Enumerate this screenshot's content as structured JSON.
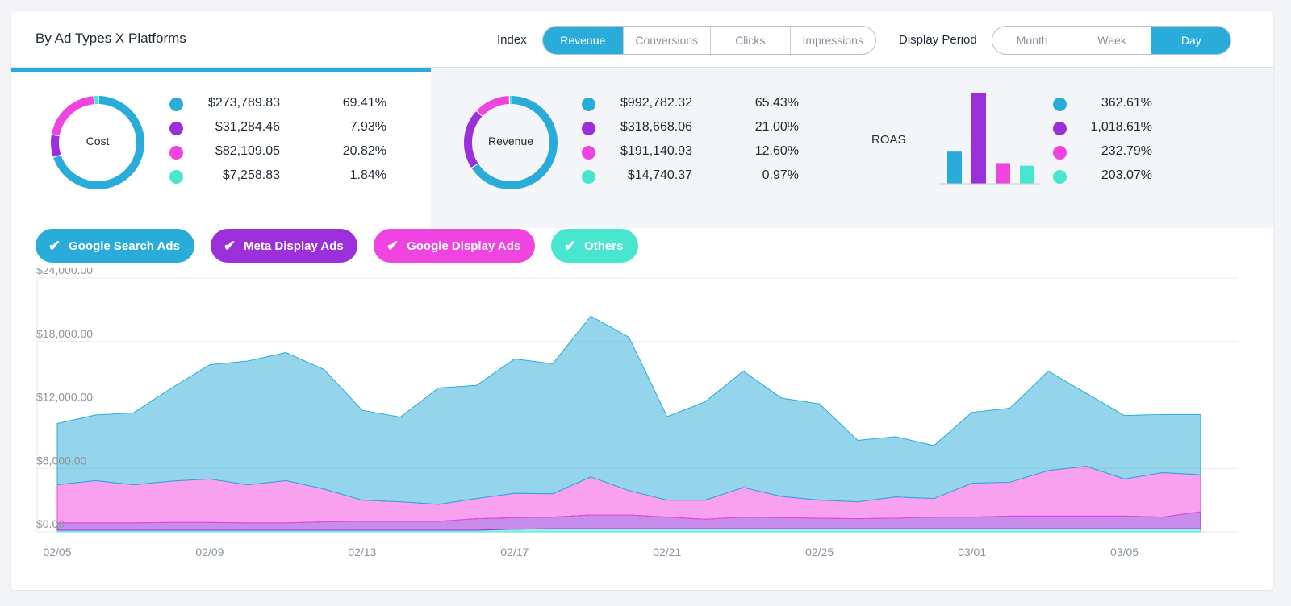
{
  "header": {
    "title": "By Ad Types X Platforms",
    "index_label": "Index",
    "index_options": [
      "Revenue",
      "Conversions",
      "Clicks",
      "Impressions"
    ],
    "index_active": "Revenue",
    "period_label": "Display Period",
    "period_options": [
      "Month",
      "Week",
      "Day"
    ],
    "period_active": "Day"
  },
  "colors": {
    "blue": "#29acd9",
    "purple": "#9b2fd9",
    "pink": "#f044e0",
    "teal": "#49e6cf"
  },
  "cost": {
    "label": "Cost",
    "rows": [
      {
        "value": "$273,789.83",
        "pct": "69.41%",
        "color": "#29acd9"
      },
      {
        "value": "$31,284.46",
        "pct": "7.93%",
        "color": "#9b2fd9"
      },
      {
        "value": "$82,109.05",
        "pct": "20.82%",
        "color": "#f044e0"
      },
      {
        "value": "$7,258.83",
        "pct": "1.84%",
        "color": "#49e6cf"
      }
    ]
  },
  "revenue": {
    "label": "Revenue",
    "rows": [
      {
        "value": "$992,782.32",
        "pct": "65.43%",
        "color": "#29acd9"
      },
      {
        "value": "$318,668.06",
        "pct": "21.00%",
        "color": "#9b2fd9"
      },
      {
        "value": "$191,140.93",
        "pct": "12.60%",
        "color": "#f044e0"
      },
      {
        "value": "$14,740.37",
        "pct": "0.97%",
        "color": "#49e6cf"
      }
    ]
  },
  "roas": {
    "label": "ROAS",
    "rows": [
      {
        "value": "362.61%",
        "color": "#29acd9"
      },
      {
        "value": "1,018.61%",
        "color": "#9b2fd9"
      },
      {
        "value": "232.79%",
        "color": "#f044e0"
      },
      {
        "value": "203.07%",
        "color": "#49e6cf"
      }
    ]
  },
  "filters": [
    {
      "label": "Google Search Ads",
      "color": "#29acd9"
    },
    {
      "label": "Meta Display Ads",
      "color": "#9b2fd9"
    },
    {
      "label": "Google Display Ads",
      "color": "#f044e0"
    },
    {
      "label": "Others",
      "color": "#49e6cf"
    }
  ],
  "chart_data": {
    "type": "area",
    "title": "",
    "y_ticks": [
      "$24,000.00",
      "$18,000.00",
      "$12,000.00",
      "$6,000.00",
      "$0.00"
    ],
    "ylim": [
      0,
      24000
    ],
    "x_ticks": [
      "02/05",
      "02/09",
      "02/13",
      "02/17",
      "02/21",
      "02/25",
      "03/01",
      "03/05"
    ],
    "stacked": true,
    "series": [
      {
        "name": "Others",
        "color": "#49e6cf",
        "values": [
          150,
          150,
          150,
          150,
          150,
          150,
          150,
          150,
          150,
          150,
          150,
          150,
          250,
          300,
          300,
          300,
          300,
          300,
          300,
          300,
          300,
          300,
          300,
          300,
          300,
          300,
          300,
          300,
          300,
          300,
          300
        ]
      },
      {
        "name": "Meta Display Ads",
        "color": "#9b2fd9",
        "values": [
          700,
          700,
          700,
          750,
          750,
          700,
          700,
          800,
          850,
          850,
          850,
          1100,
          1100,
          1100,
          1300,
          1300,
          1100,
          900,
          1100,
          1050,
          1000,
          950,
          1000,
          1100,
          1100,
          1200,
          1200,
          1200,
          1200,
          1100,
          1600
        ]
      },
      {
        "name": "Google Display Ads",
        "color": "#f044e0",
        "values": [
          3600,
          4000,
          3600,
          3900,
          4100,
          3600,
          4000,
          3100,
          2000,
          1850,
          1600,
          1900,
          2300,
          2200,
          3600,
          2300,
          1600,
          1800,
          2800,
          2000,
          1700,
          1600,
          2000,
          1750,
          3200,
          3200,
          4300,
          4700,
          3500,
          4200,
          3500
        ]
      },
      {
        "name": "Google Search Ads",
        "color": "#29acd9",
        "values": [
          5800,
          6200,
          6800,
          8800,
          10800,
          11700,
          12100,
          11300,
          8500,
          8000,
          11000,
          10700,
          12700,
          12300,
          15200,
          14500,
          7900,
          9300,
          11000,
          9300,
          9100,
          5800,
          5700,
          5000,
          6700,
          7000,
          9400,
          6900,
          6000,
          5500,
          5700
        ]
      }
    ]
  }
}
